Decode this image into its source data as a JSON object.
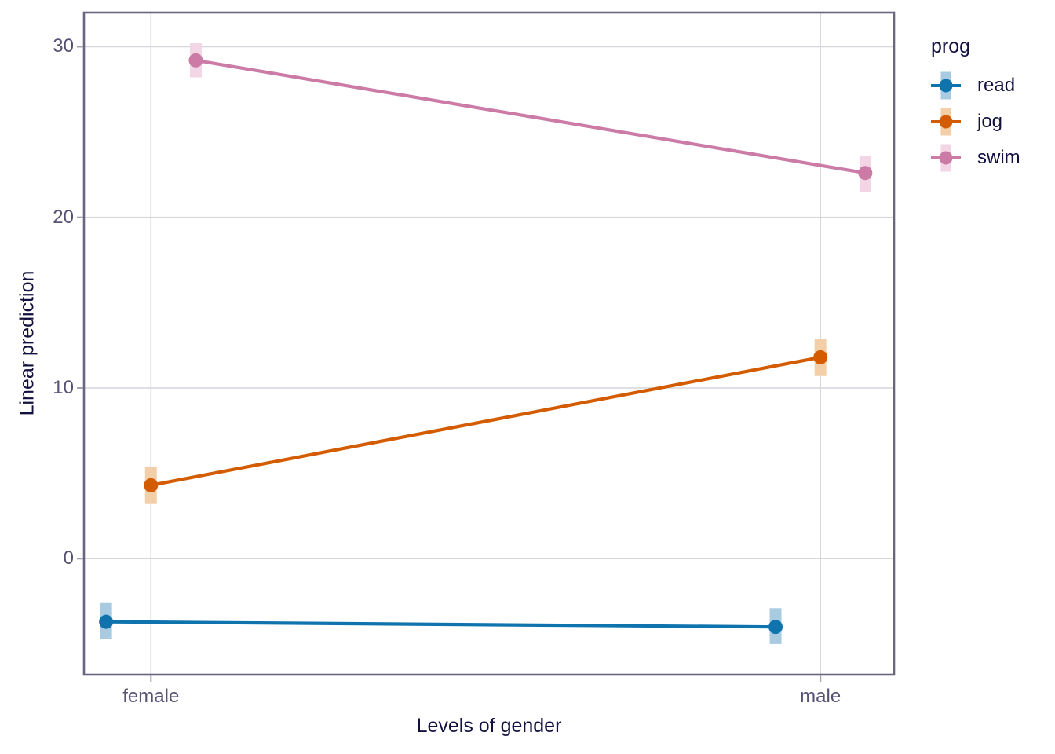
{
  "figure_title": "",
  "axes": {
    "x_title": "Levels of gender",
    "y_title": "Linear prediction"
  },
  "legend": {
    "title": "prog",
    "items": [
      "read",
      "jog",
      "swim"
    ]
  },
  "palette": {
    "grid_color": "#d6d6db",
    "panel_border_color": "#6c657f",
    "tick_mark_color": "#a5a0b0",
    "tick_label_color": "#565273",
    "title_text_color": "#12103f"
  },
  "chart_data": {
    "type": "line",
    "style": "interaction plot with dodged points, confidence-interval bands and connecting lines",
    "title": "",
    "x_axis_label": "Levels of gender",
    "y_axis_label": "Linear prediction",
    "legend_title": "prog",
    "legend_position": "right",
    "grid": "major gridlines only",
    "x_categories": [
      "female",
      "male"
    ],
    "y_ticks": [
      0,
      10,
      20,
      30
    ],
    "xlim": [
      0.9,
      2.11
    ],
    "ylim": [
      -6.8,
      32.0
    ],
    "series": [
      {
        "name": "read",
        "color": "#0f73ae",
        "band_color": "#a8cbe2",
        "dodge": -0.067,
        "values": [
          -3.7,
          -4.0
        ],
        "ci_low": [
          -4.7,
          -5.0
        ],
        "ci_high": [
          -2.6,
          -2.9
        ]
      },
      {
        "name": "jog",
        "color": "#d45c00",
        "band_color": "#f3cfa9",
        "dodge": 0,
        "values": [
          4.3,
          11.8
        ],
        "ci_low": [
          3.2,
          10.7
        ],
        "ci_high": [
          5.4,
          12.9
        ]
      },
      {
        "name": "swim",
        "color": "#cb7ba6",
        "band_color": "#f2d6e5",
        "dodge": 0.067,
        "values": [
          29.2,
          22.6
        ],
        "ci_low": [
          28.2,
          21.5
        ],
        "ci_high": [
          30.2,
          23.6
        ]
      }
    ]
  }
}
